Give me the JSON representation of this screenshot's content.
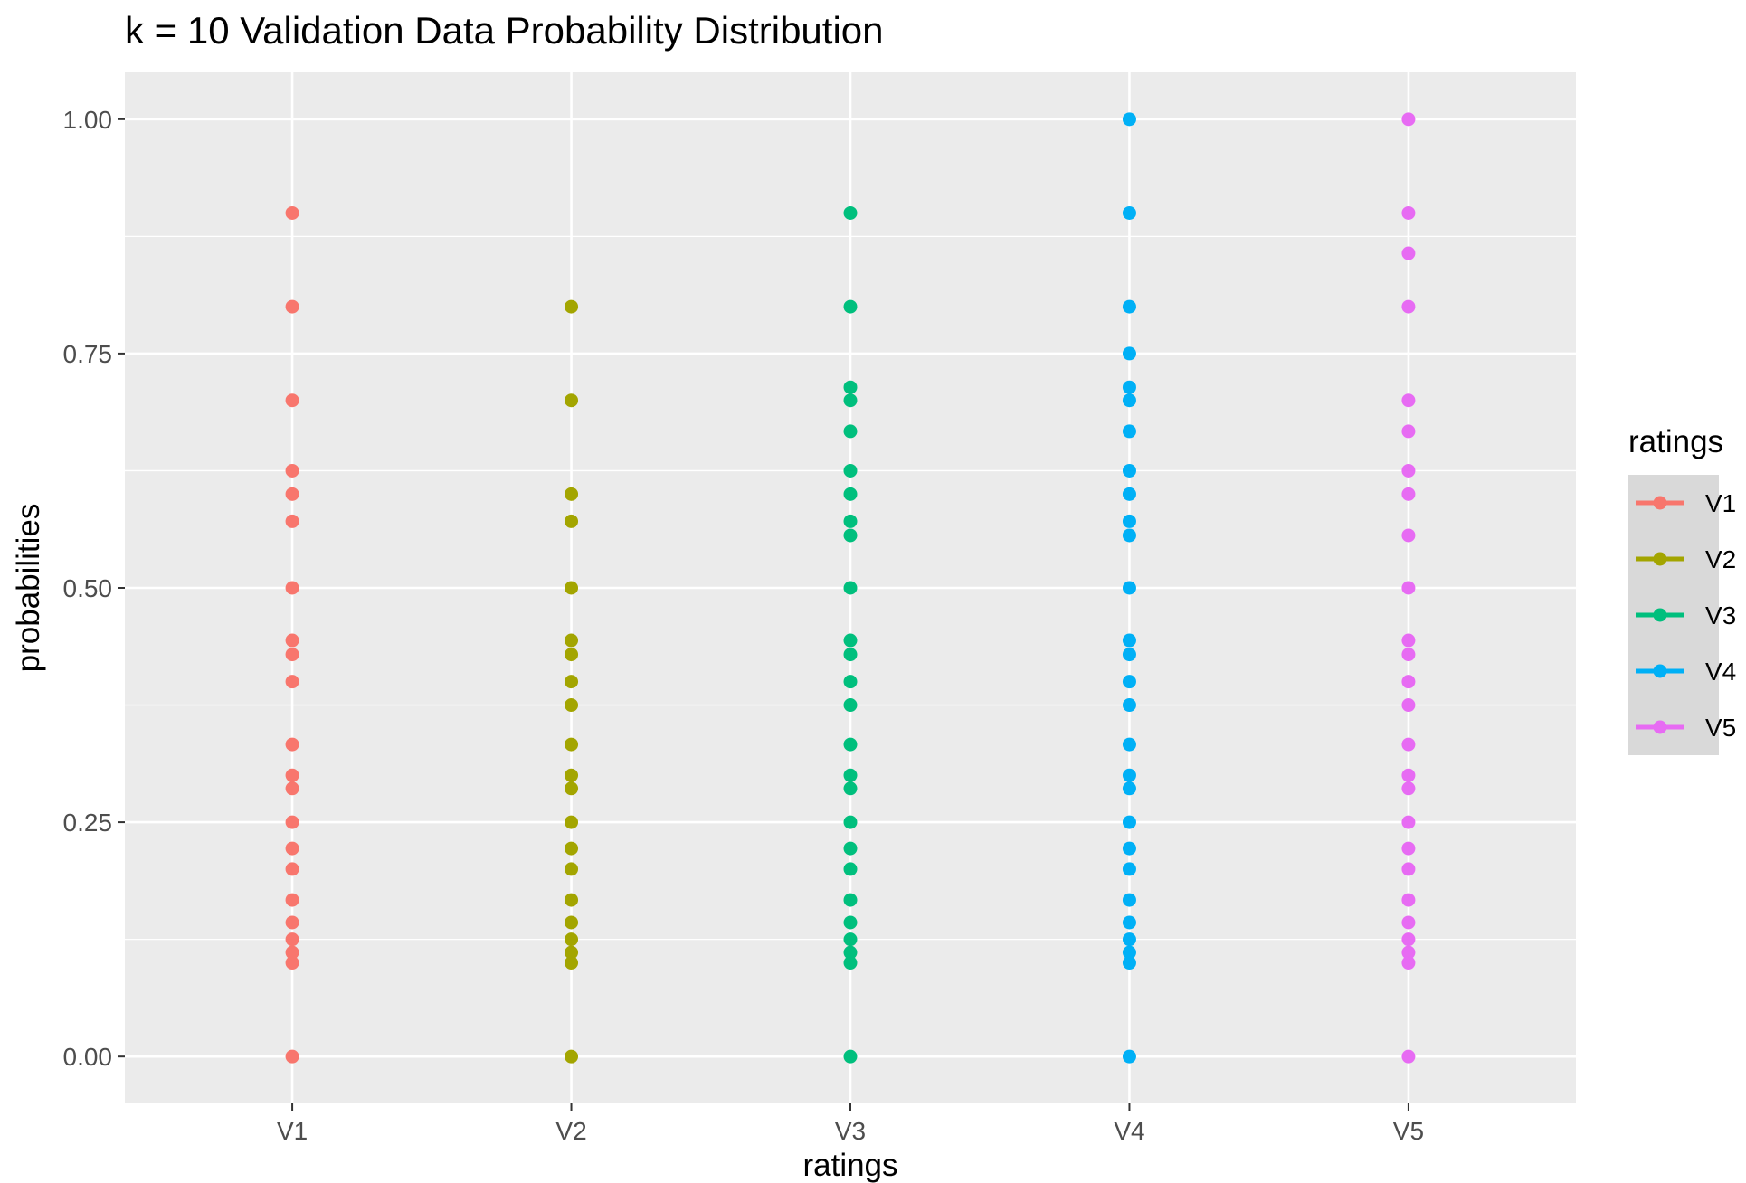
{
  "chart_data": {
    "type": "scatter",
    "title": "k = 10 Validation Data Probability Distribution",
    "xlabel": "ratings",
    "ylabel": "probabilities",
    "categories": [
      "V1",
      "V2",
      "V3",
      "V4",
      "V5"
    ],
    "yticks": [
      "0.00",
      "0.25",
      "0.50",
      "0.75",
      "1.00"
    ],
    "ylim": [
      -0.05,
      1.05
    ],
    "grid": true,
    "legend": {
      "title": "ratings",
      "position": "right"
    },
    "series": [
      {
        "name": "V1",
        "color": "#F8766D",
        "values": [
          0,
          0.1,
          0.111,
          0.125,
          0.143,
          0.167,
          0.2,
          0.222,
          0.25,
          0.286,
          0.3,
          0.333,
          0.4,
          0.429,
          0.444,
          0.5,
          0.571,
          0.6,
          0.625,
          0.7,
          0.8,
          0.9
        ]
      },
      {
        "name": "V2",
        "color": "#A3A500",
        "values": [
          0,
          0.1,
          0.111,
          0.125,
          0.143,
          0.167,
          0.2,
          0.222,
          0.25,
          0.286,
          0.3,
          0.333,
          0.375,
          0.4,
          0.429,
          0.444,
          0.5,
          0.571,
          0.6,
          0.7,
          0.8
        ]
      },
      {
        "name": "V3",
        "color": "#00BF7D",
        "values": [
          0,
          0.1,
          0.111,
          0.125,
          0.143,
          0.167,
          0.2,
          0.222,
          0.25,
          0.286,
          0.3,
          0.333,
          0.375,
          0.4,
          0.429,
          0.444,
          0.5,
          0.556,
          0.571,
          0.6,
          0.625,
          0.667,
          0.7,
          0.714,
          0.8,
          0.9
        ]
      },
      {
        "name": "V4",
        "color": "#00B0F6",
        "values": [
          0,
          0.1,
          0.111,
          0.125,
          0.143,
          0.167,
          0.2,
          0.222,
          0.25,
          0.286,
          0.3,
          0.333,
          0.375,
          0.4,
          0.429,
          0.444,
          0.5,
          0.556,
          0.571,
          0.6,
          0.625,
          0.667,
          0.7,
          0.714,
          0.75,
          0.8,
          0.9,
          1.0
        ]
      },
      {
        "name": "V5",
        "color": "#E76BF3",
        "values": [
          0,
          0.1,
          0.111,
          0.125,
          0.143,
          0.167,
          0.2,
          0.222,
          0.25,
          0.286,
          0.3,
          0.333,
          0.375,
          0.4,
          0.429,
          0.444,
          0.5,
          0.556,
          0.6,
          0.625,
          0.667,
          0.7,
          0.8,
          0.857,
          0.9,
          1.0
        ]
      }
    ]
  }
}
